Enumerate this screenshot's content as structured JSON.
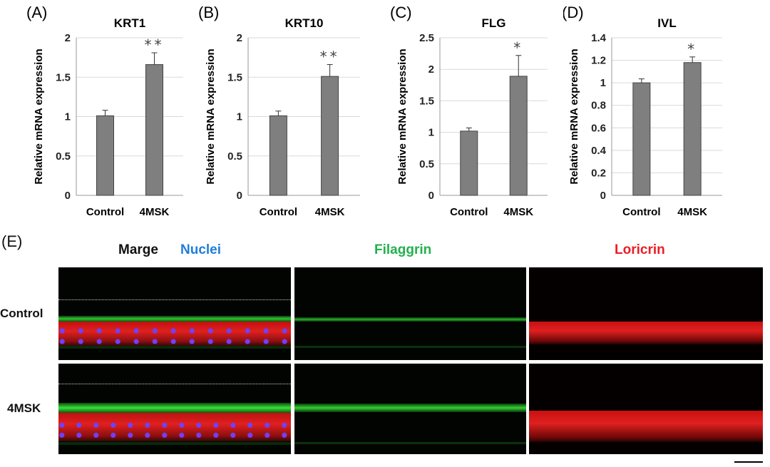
{
  "chart_data": [
    {
      "panel": "(A)",
      "type": "bar",
      "title": "KRT1",
      "ylabel": "Relative mRNA expression",
      "categories": [
        "Control",
        "4MSK"
      ],
      "values": [
        1.01,
        1.66
      ],
      "errors": [
        0.07,
        0.15
      ],
      "significance": [
        "",
        "**"
      ],
      "ylim": [
        0,
        2
      ],
      "yticks": [
        "0",
        "0.5",
        "1",
        "1.5",
        "2"
      ],
      "tickstep": 0.5,
      "grid": true
    },
    {
      "panel": "(B)",
      "type": "bar",
      "title": "KRT10",
      "ylabel": "Relative mRNA expression",
      "categories": [
        "Control",
        "4MSK"
      ],
      "values": [
        1.01,
        1.51
      ],
      "errors": [
        0.06,
        0.15
      ],
      "significance": [
        "",
        "**"
      ],
      "ylim": [
        0,
        2
      ],
      "yticks": [
        "0",
        "0.5",
        "1",
        "1.5",
        "2"
      ],
      "tickstep": 0.5,
      "grid": true
    },
    {
      "panel": "(C)",
      "type": "bar",
      "title": "FLG",
      "ylabel": "Relative mRNA expression",
      "categories": [
        "Control",
        "4MSK"
      ],
      "values": [
        1.02,
        1.89
      ],
      "errors": [
        0.05,
        0.33
      ],
      "significance": [
        "",
        "*"
      ],
      "ylim": [
        0,
        2.5
      ],
      "yticks": [
        "0",
        "0.5",
        "1",
        "1.5",
        "2",
        "2.5"
      ],
      "tickstep": 0.5,
      "grid": true
    },
    {
      "panel": "(D)",
      "type": "bar",
      "title": "IVL",
      "ylabel": "Relative mRNA expression",
      "categories": [
        "Control",
        "4MSK"
      ],
      "values": [
        1.0,
        1.18
      ],
      "errors": [
        0.035,
        0.05
      ],
      "significance": [
        "",
        "*"
      ],
      "ylim": [
        0,
        1.4
      ],
      "yticks": [
        "0",
        "0.2",
        "0.4",
        "0.6",
        "0.8",
        "1",
        "1.2",
        "1.4"
      ],
      "tickstep": 0.2,
      "grid": true
    }
  ],
  "panel_e": {
    "letter": "(E)",
    "columns": [
      {
        "label": "Marge",
        "color": "#111111"
      },
      {
        "label": "Nuclei",
        "color": "#1e7fd8"
      },
      {
        "label": "Filaggrin",
        "color": "#22b14c"
      },
      {
        "label": "Loricrin",
        "color": "#ee1c24"
      }
    ],
    "rows": [
      "Control",
      "4MSK"
    ]
  },
  "colors": {
    "bar": "#7f7f7f",
    "grid": "#d9d9d9"
  }
}
